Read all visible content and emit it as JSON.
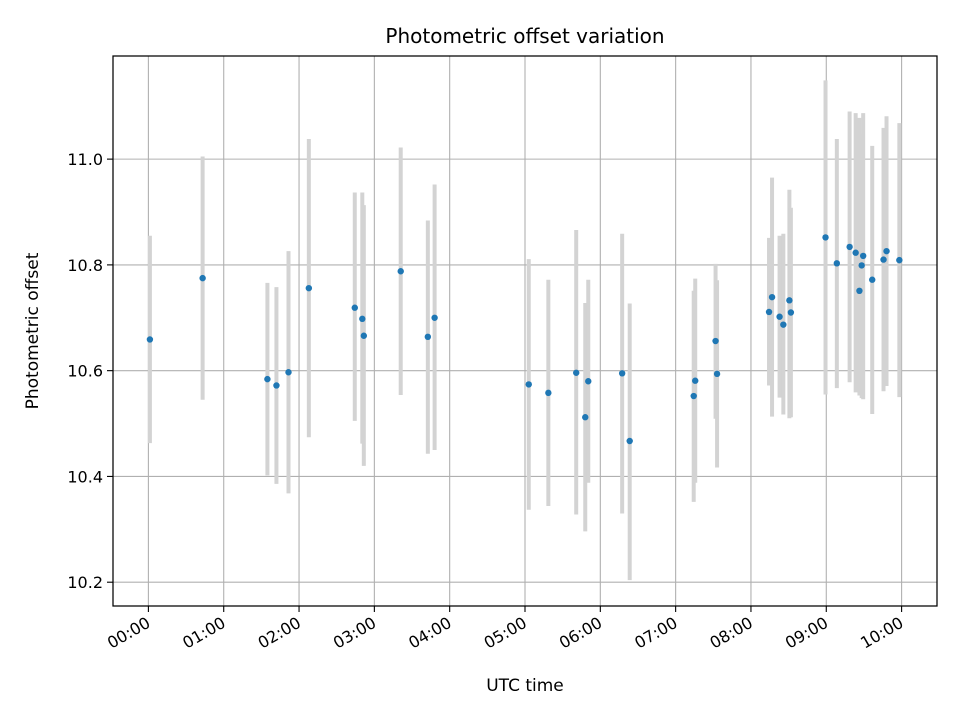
{
  "chart_data": {
    "type": "scatter",
    "title": "Photometric offset variation",
    "xlabel": "UTC time",
    "ylabel": "Photometric offset",
    "x_unit": "hours UTC",
    "xlim": [
      -0.47,
      10.47
    ],
    "ylim": [
      10.155,
      11.195
    ],
    "grid": true,
    "x_ticks": [
      {
        "value": 0,
        "label": "00:00"
      },
      {
        "value": 1,
        "label": "01:00"
      },
      {
        "value": 2,
        "label": "02:00"
      },
      {
        "value": 3,
        "label": "03:00"
      },
      {
        "value": 4,
        "label": "04:00"
      },
      {
        "value": 5,
        "label": "05:00"
      },
      {
        "value": 6,
        "label": "06:00"
      },
      {
        "value": 7,
        "label": "07:00"
      },
      {
        "value": 8,
        "label": "08:00"
      },
      {
        "value": 9,
        "label": "09:00"
      },
      {
        "value": 10,
        "label": "10:00"
      }
    ],
    "y_ticks": [
      {
        "value": 10.2,
        "label": "10.2"
      },
      {
        "value": 10.4,
        "label": "10.4"
      },
      {
        "value": 10.6,
        "label": "10.6"
      },
      {
        "value": 10.8,
        "label": "10.8"
      },
      {
        "value": 11.0,
        "label": "11.0"
      }
    ],
    "point_color": "#1f77b4",
    "errorbar_color": "#d3d3d3",
    "points": [
      {
        "x": 0.02,
        "y": 10.659,
        "ylo": 10.463,
        "yhi": 10.855
      },
      {
        "x": 0.72,
        "y": 10.775,
        "ylo": 10.545,
        "yhi": 11.005
      },
      {
        "x": 1.58,
        "y": 10.584,
        "ylo": 10.402,
        "yhi": 10.766
      },
      {
        "x": 1.7,
        "y": 10.572,
        "ylo": 10.386,
        "yhi": 10.758
      },
      {
        "x": 1.86,
        "y": 10.597,
        "ylo": 10.368,
        "yhi": 10.826
      },
      {
        "x": 2.13,
        "y": 10.756,
        "ylo": 10.474,
        "yhi": 11.038
      },
      {
        "x": 2.74,
        "y": 10.719,
        "ylo": 10.505,
        "yhi": 10.937
      },
      {
        "x": 2.84,
        "y": 10.698,
        "ylo": 10.462,
        "yhi": 10.937
      },
      {
        "x": 2.86,
        "y": 10.666,
        "ylo": 10.42,
        "yhi": 10.913
      },
      {
        "x": 3.35,
        "y": 10.788,
        "ylo": 10.554,
        "yhi": 11.022
      },
      {
        "x": 3.71,
        "y": 10.664,
        "ylo": 10.443,
        "yhi": 10.884
      },
      {
        "x": 3.8,
        "y": 10.7,
        "ylo": 10.45,
        "yhi": 10.952
      },
      {
        "x": 5.05,
        "y": 10.574,
        "ylo": 10.337,
        "yhi": 10.811
      },
      {
        "x": 5.31,
        "y": 10.558,
        "ylo": 10.344,
        "yhi": 10.772
      },
      {
        "x": 5.68,
        "y": 10.596,
        "ylo": 10.328,
        "yhi": 10.866
      },
      {
        "x": 5.8,
        "y": 10.512,
        "ylo": 10.296,
        "yhi": 10.728
      },
      {
        "x": 5.84,
        "y": 10.58,
        "ylo": 10.388,
        "yhi": 10.772
      },
      {
        "x": 6.29,
        "y": 10.595,
        "ylo": 10.33,
        "yhi": 10.859
      },
      {
        "x": 6.39,
        "y": 10.467,
        "ylo": 10.204,
        "yhi": 10.727
      },
      {
        "x": 7.24,
        "y": 10.552,
        "ylo": 10.352,
        "yhi": 10.751
      },
      {
        "x": 7.26,
        "y": 10.581,
        "ylo": 10.388,
        "yhi": 10.774
      },
      {
        "x": 7.53,
        "y": 10.656,
        "ylo": 10.509,
        "yhi": 10.802
      },
      {
        "x": 7.55,
        "y": 10.594,
        "ylo": 10.417,
        "yhi": 10.771
      },
      {
        "x": 8.24,
        "y": 10.711,
        "ylo": 10.572,
        "yhi": 10.851
      },
      {
        "x": 8.28,
        "y": 10.739,
        "ylo": 10.513,
        "yhi": 10.965
      },
      {
        "x": 8.38,
        "y": 10.702,
        "ylo": 10.549,
        "yhi": 10.855
      },
      {
        "x": 8.43,
        "y": 10.687,
        "ylo": 10.517,
        "yhi": 10.859
      },
      {
        "x": 8.51,
        "y": 10.733,
        "ylo": 10.51,
        "yhi": 10.942
      },
      {
        "x": 8.53,
        "y": 10.71,
        "ylo": 10.512,
        "yhi": 10.908
      },
      {
        "x": 8.99,
        "y": 10.852,
        "ylo": 10.555,
        "yhi": 11.149
      },
      {
        "x": 9.14,
        "y": 10.803,
        "ylo": 10.567,
        "yhi": 11.038
      },
      {
        "x": 9.31,
        "y": 10.834,
        "ylo": 10.578,
        "yhi": 11.09
      },
      {
        "x": 9.39,
        "y": 10.823,
        "ylo": 10.559,
        "yhi": 11.087
      },
      {
        "x": 9.44,
        "y": 10.751,
        "ylo": 10.553,
        "yhi": 11.078
      },
      {
        "x": 9.47,
        "y": 10.799,
        "ylo": 10.548,
        "yhi": 11.048
      },
      {
        "x": 9.49,
        "y": 10.817,
        "ylo": 10.546,
        "yhi": 11.087
      },
      {
        "x": 9.61,
        "y": 10.772,
        "ylo": 10.518,
        "yhi": 11.025
      },
      {
        "x": 9.76,
        "y": 10.81,
        "ylo": 10.561,
        "yhi": 11.059
      },
      {
        "x": 9.8,
        "y": 10.826,
        "ylo": 10.571,
        "yhi": 11.081
      },
      {
        "x": 9.97,
        "y": 10.809,
        "ylo": 10.55,
        "yhi": 11.068
      }
    ]
  }
}
